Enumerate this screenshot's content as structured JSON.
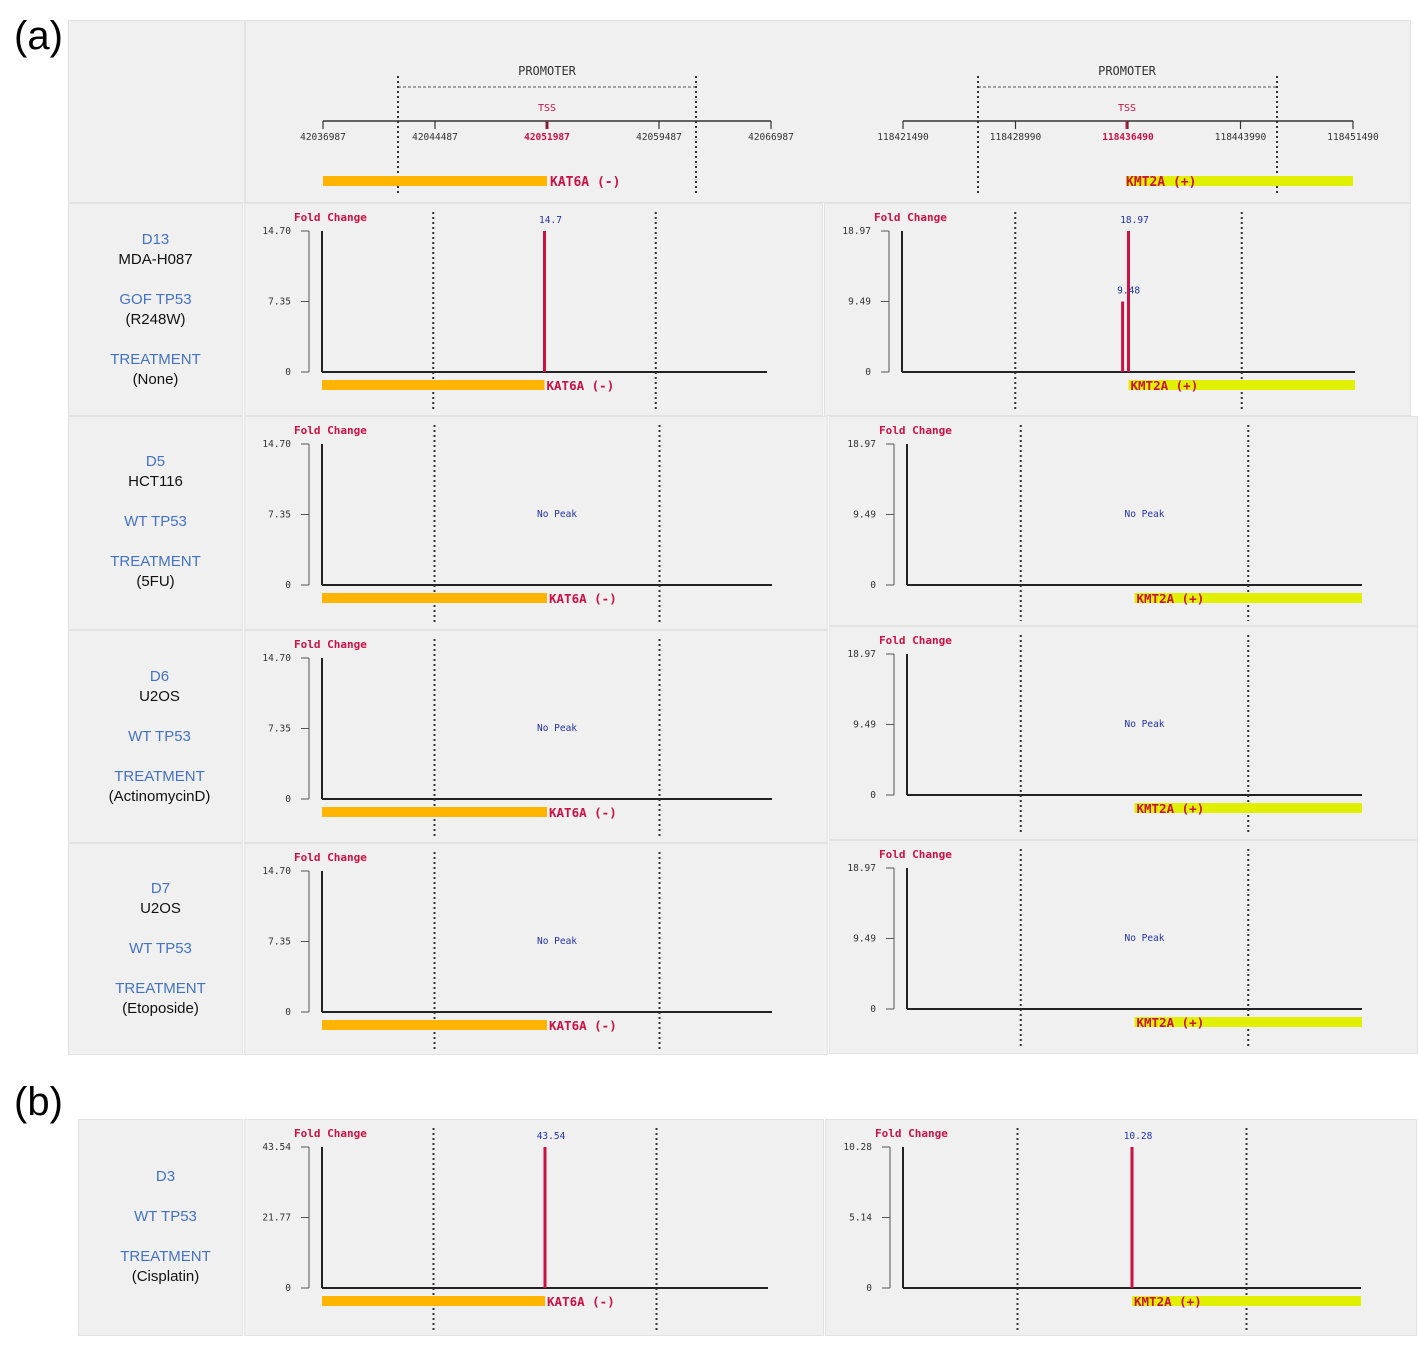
{
  "panel_labels": {
    "a": "(a)",
    "b": "(b)"
  },
  "header": {
    "promoter_label": "PROMOTER",
    "tss_label": "TSS",
    "kat6a": {
      "ticks": [
        "42036987",
        "42044487",
        "42051987",
        "42059487",
        "42066987"
      ],
      "tss_tick": "42051987",
      "gene_label": "KAT6A (-)"
    },
    "kmt2a": {
      "ticks": [
        "118421490",
        "118428990",
        "118436490",
        "118443990",
        "118451490"
      ],
      "tss_tick": "118436490",
      "gene_label": "KMT2A (+)"
    }
  },
  "rows": [
    {
      "id": "D13",
      "cell_line": "MDA-H087",
      "tp53": "GOF TP53",
      "tp53_detail": "(R248W)",
      "treatment_label": "TREATMENT",
      "treatment": "(None)"
    },
    {
      "id": "D5",
      "cell_line": "HCT116",
      "tp53": "WT TP53",
      "tp53_detail": "",
      "treatment_label": "TREATMENT",
      "treatment": "(5FU)"
    },
    {
      "id": "D6",
      "cell_line": "U2OS",
      "tp53": "WT TP53",
      "tp53_detail": "",
      "treatment_label": "TREATMENT",
      "treatment": "(ActinomycinD)"
    },
    {
      "id": "D7",
      "cell_line": "U2OS",
      "tp53": "WT TP53",
      "tp53_detail": "",
      "treatment_label": "TREATMENT",
      "treatment": "(Etoposide)"
    },
    {
      "id": "D3",
      "cell_line": "",
      "tp53": "WT TP53",
      "tp53_detail": "",
      "treatment_label": "TREATMENT",
      "treatment": "(Cisplatin)"
    }
  ],
  "colors": {
    "kat6a_bar": "#ffb400",
    "kmt2a_bar": "#e0f000",
    "peak": "#cc1144",
    "fold_change_title": "#cc1144",
    "peak_label": "#2233aa",
    "axis": "#222222",
    "promoter_dash": "#333333"
  },
  "chart_data": [
    {
      "type": "bar",
      "row": "D13",
      "gene": "KAT6A (-)",
      "ylabel": "Fold Change",
      "yticks": [
        "14.70",
        "7.35",
        "0"
      ],
      "ylim": [
        0,
        14.7
      ],
      "no_peak": "",
      "peaks": [
        {
          "x": 42051987,
          "value": 14.7,
          "label": "14.7"
        }
      ]
    },
    {
      "type": "bar",
      "row": "D13",
      "gene": "KMT2A (+)",
      "ylabel": "Fold Change",
      "yticks": [
        "18.97",
        "9.49",
        "0"
      ],
      "ylim": [
        0,
        18.97
      ],
      "no_peak": "",
      "peaks": [
        {
          "x": 118436490,
          "value": 18.97,
          "label": "18.97"
        },
        {
          "x": 118436100,
          "value": 9.48,
          "label": "9.48"
        }
      ]
    },
    {
      "type": "bar",
      "row": "D5",
      "gene": "KAT6A (-)",
      "ylabel": "Fold Change",
      "yticks": [
        "14.70",
        "7.35",
        "0"
      ],
      "ylim": [
        0,
        14.7
      ],
      "no_peak": "No Peak",
      "peaks": []
    },
    {
      "type": "bar",
      "row": "D5",
      "gene": "KMT2A (+)",
      "ylabel": "Fold Change",
      "yticks": [
        "18.97",
        "9.49",
        "0"
      ],
      "ylim": [
        0,
        18.97
      ],
      "no_peak": "No Peak",
      "peaks": []
    },
    {
      "type": "bar",
      "row": "D6",
      "gene": "KAT6A (-)",
      "ylabel": "Fold Change",
      "yticks": [
        "14.70",
        "7.35",
        "0"
      ],
      "ylim": [
        0,
        14.7
      ],
      "no_peak": "No Peak",
      "peaks": []
    },
    {
      "type": "bar",
      "row": "D6",
      "gene": "KMT2A (+)",
      "ylabel": "Fold Change",
      "yticks": [
        "18.97",
        "9.49",
        "0"
      ],
      "ylim": [
        0,
        18.97
      ],
      "no_peak": "No Peak",
      "peaks": []
    },
    {
      "type": "bar",
      "row": "D7",
      "gene": "KAT6A (-)",
      "ylabel": "Fold Change",
      "yticks": [
        "14.70",
        "7.35",
        "0"
      ],
      "ylim": [
        0,
        14.7
      ],
      "no_peak": "No Peak",
      "peaks": []
    },
    {
      "type": "bar",
      "row": "D7",
      "gene": "KMT2A (+)",
      "ylabel": "Fold Change",
      "yticks": [
        "18.97",
        "9.49",
        "0"
      ],
      "ylim": [
        0,
        18.97
      ],
      "no_peak": "No Peak",
      "peaks": []
    },
    {
      "type": "bar",
      "row": "D3",
      "gene": "KAT6A (-)",
      "ylabel": "Fold Change",
      "yticks": [
        "43.54",
        "21.77",
        "0"
      ],
      "ylim": [
        0,
        43.54
      ],
      "no_peak": "",
      "peaks": [
        {
          "x": 42051987,
          "value": 43.54,
          "label": "43.54"
        }
      ]
    },
    {
      "type": "bar",
      "row": "D3",
      "gene": "KMT2A (+)",
      "ylabel": "Fold Change",
      "yticks": [
        "10.28",
        "5.14",
        "0"
      ],
      "ylim": [
        0,
        10.28
      ],
      "no_peak": "",
      "peaks": [
        {
          "x": 118436490,
          "value": 10.28,
          "label": "10.28"
        }
      ]
    }
  ]
}
